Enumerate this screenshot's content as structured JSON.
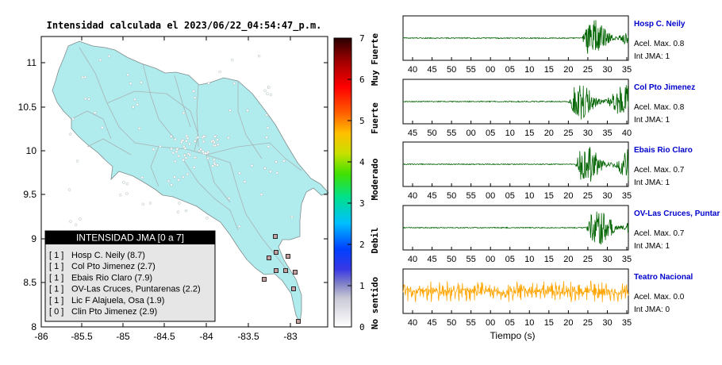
{
  "title": "Intensidad calculada el 2023/06/22_04:54:47_p.m.",
  "map": {
    "x_ticks": [
      "-86",
      "-85.5",
      "-85",
      "-84.5",
      "-84",
      "-83.5",
      "-83"
    ],
    "y_ticks": [
      "11",
      "10.5",
      "10",
      "9.5",
      "9",
      "8.5",
      "8"
    ],
    "land_color": "#b0ebee",
    "station_color": "#333333"
  },
  "legend": {
    "title": "INTENSIDAD JMA [0 a 7]",
    "rows": [
      {
        "jma": "[ 1 ]",
        "station": "Hosp C. Neily (8.7)"
      },
      {
        "jma": "[ 1 ]",
        "station": "Col Pto Jimenez (2.7)"
      },
      {
        "jma": "[ 1 ]",
        "station": "Ebais Rio Claro (7.9)"
      },
      {
        "jma": "[ 1 ]",
        "station": "OV-Las Cruces, Puntarenas (2.2)"
      },
      {
        "jma": "[ 1 ]",
        "station": "Lic F Alajuela, Osa (1.9)"
      },
      {
        "jma": "[ 0 ]",
        "station": "Clin Pto Jimenez (2.9)"
      }
    ]
  },
  "colorbar": {
    "ticks": [
      "0",
      "1",
      "2",
      "3",
      "4",
      "5",
      "6",
      "7"
    ],
    "labels": [
      "No sentido",
      "Debil",
      "Moderado",
      "Fuerte",
      "Muy Fuerte"
    ]
  },
  "chart_data": [
    {
      "type": "line",
      "station": "Hosp C. Neily",
      "accel_label": "Acel. Max. 0.8",
      "jma_label": "Int JMA: 1",
      "x_ticks": [
        "40",
        "45",
        "50",
        "55",
        "00",
        "05",
        "10",
        "15",
        "20",
        "25",
        "30",
        "35"
      ],
      "color": "#006400",
      "onset_fraction": 0.79,
      "peak": 0.8
    },
    {
      "type": "line",
      "station": "Col Pto Jimenez",
      "accel_label": "Acel. Max. 0.8",
      "jma_label": "Int JMA: 1",
      "x_ticks": [
        "45",
        "50",
        "55",
        "00",
        "05",
        "10",
        "15",
        "20",
        "25",
        "30",
        "35",
        "40"
      ],
      "color": "#006400",
      "onset_fraction": 0.73,
      "peak": 0.8
    },
    {
      "type": "line",
      "station": "Ebais Rio Claro",
      "accel_label": "Acel. Max. 0.7",
      "jma_label": "Int JMA: 1",
      "x_ticks": [
        "40",
        "45",
        "50",
        "55",
        "00",
        "05",
        "10",
        "15",
        "20",
        "25",
        "30",
        "35"
      ],
      "color": "#006400",
      "onset_fraction": 0.76,
      "peak": 0.7
    },
    {
      "type": "line",
      "station": "OV-Las Cruces, Puntar",
      "accel_label": "Acel. Max. 0.7",
      "jma_label": "Int JMA: 1",
      "x_ticks": [
        "40",
        "45",
        "50",
        "55",
        "00",
        "05",
        "10",
        "15",
        "20",
        "25",
        "30",
        "35"
      ],
      "color": "#006400",
      "onset_fraction": 0.81,
      "peak": 0.7
    },
    {
      "type": "line",
      "station": "Teatro Nacional",
      "accel_label": "Acel. Max. 0.0",
      "jma_label": "Int JMA: 0",
      "x_ticks": [
        "40",
        "45",
        "50",
        "55",
        "00",
        "05",
        "10",
        "15",
        "20",
        "25",
        "30",
        "35"
      ],
      "color": "#ffa500",
      "onset_fraction": 0,
      "peak": 0.0
    }
  ],
  "time_axis_label": "Tiempo (s)"
}
